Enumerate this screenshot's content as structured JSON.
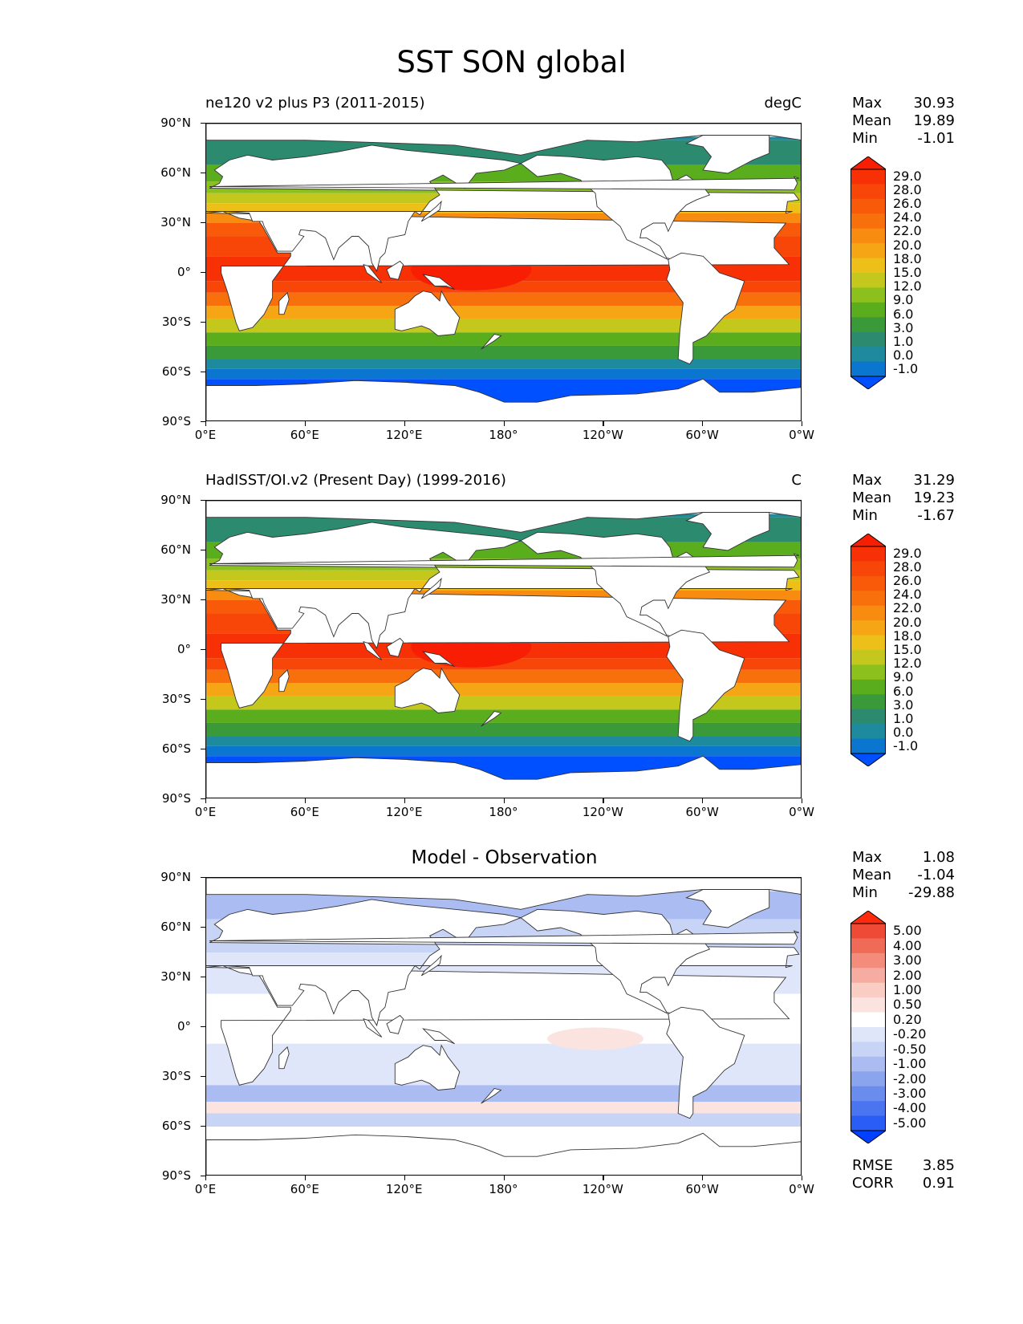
{
  "figure": {
    "title": "SST SON global"
  },
  "axes": {
    "lat_ticks": [
      "90°N",
      "60°N",
      "30°N",
      "0°",
      "30°S",
      "60°S",
      "90°S"
    ],
    "lon_ticks": [
      "0°E",
      "60°E",
      "120°E",
      "180°",
      "120°W",
      "60°W",
      "0°W"
    ]
  },
  "panels": [
    {
      "left_title": "ne120 v2 plus P3 (2011-2015)",
      "right_title": "degC",
      "center_title": "",
      "stats": {
        "max_label": "Max",
        "max": "30.93",
        "mean_label": "Mean",
        "mean": "19.89",
        "min_label": "Min",
        "min": "-1.01"
      },
      "colorbar": [
        "29.0",
        "28.0",
        "26.0",
        "24.0",
        "22.0",
        "20.0",
        "18.0",
        "15.0",
        "12.0",
        "9.0",
        "6.0",
        "3.0",
        "1.0",
        "0.0",
        "-1.0"
      ]
    },
    {
      "left_title": "HadISST/OI.v2 (Present Day) (1999-2016)",
      "right_title": "C",
      "center_title": "",
      "stats": {
        "max_label": "Max",
        "max": "31.29",
        "mean_label": "Mean",
        "mean": "19.23",
        "min_label": "Min",
        "min": "-1.67"
      },
      "colorbar": [
        "29.0",
        "28.0",
        "26.0",
        "24.0",
        "22.0",
        "20.0",
        "18.0",
        "15.0",
        "12.0",
        "9.0",
        "6.0",
        "3.0",
        "1.0",
        "0.0",
        "-1.0"
      ]
    },
    {
      "left_title": "",
      "right_title": "",
      "center_title": "Model - Observation",
      "stats": {
        "max_label": "Max",
        "max": "1.08",
        "mean_label": "Mean",
        "mean": "-1.04",
        "min_label": "Min",
        "min": "-29.88"
      },
      "colorbar": [
        "5.00",
        "4.00",
        "3.00",
        "2.00",
        "1.00",
        "0.50",
        "0.20",
        "-0.20",
        "-0.50",
        "-1.00",
        "-2.00",
        "-3.00",
        "-4.00",
        "-5.00"
      ],
      "metrics": {
        "rmse_label": "RMSE",
        "rmse": "3.85",
        "corr_label": "CORR",
        "corr": "0.91"
      }
    }
  ],
  "colors": {
    "sst_scale": [
      "#0050ff",
      "#0a76d0",
      "#1e8a9e",
      "#2c8a6e",
      "#3a9a3a",
      "#5aae1e",
      "#8cc01c",
      "#c4c81c",
      "#ecc018",
      "#f6a614",
      "#f88c10",
      "#f8700c",
      "#f85a0a",
      "#f84608",
      "#f83006",
      "#f81e04"
    ],
    "diff_scale": [
      "#0040ff",
      "#2a5cf6",
      "#4a74f0",
      "#6a8cec",
      "#8aa4ee",
      "#aabcf2",
      "#c8d4f6",
      "#e0e6fa",
      "#ffffff",
      "#fbe4e0",
      "#f9ccc4",
      "#f6aca0",
      "#f48c7c",
      "#f06a58",
      "#ee4a36",
      "#ff2a0e"
    ],
    "land": "#ffffff",
    "coast": "#333333"
  }
}
